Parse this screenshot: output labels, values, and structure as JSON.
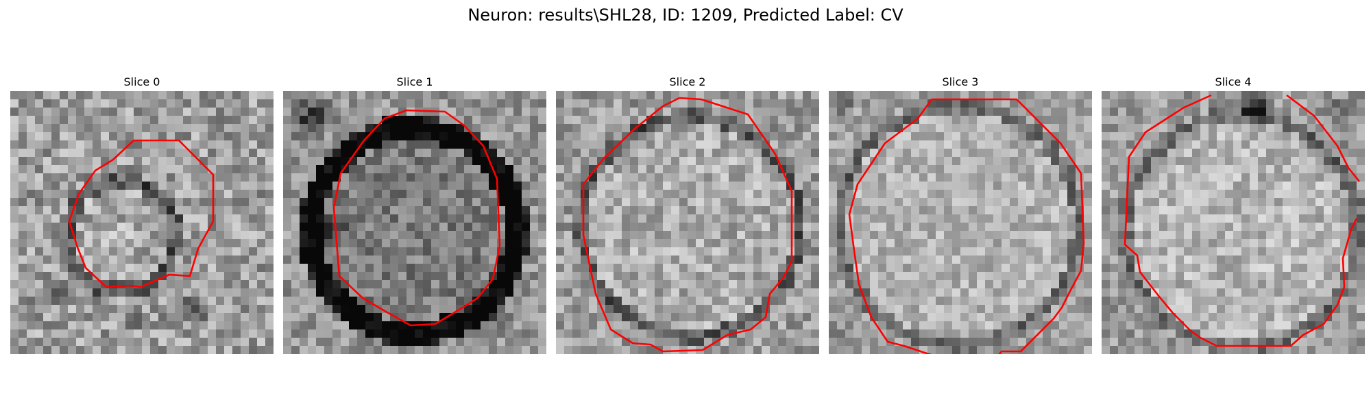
{
  "figure": {
    "title": "Neuron: results\\SHL28, ID: 1209, Predicted Label: CV"
  },
  "panels": [
    {
      "title": "Slice 0"
    },
    {
      "title": "Slice 1"
    },
    {
      "title": "Slice 2"
    },
    {
      "title": "Slice 3"
    },
    {
      "title": "Slice 4"
    }
  ],
  "colors": {
    "contour": "#ff0000",
    "colormap": "grayscale"
  }
}
